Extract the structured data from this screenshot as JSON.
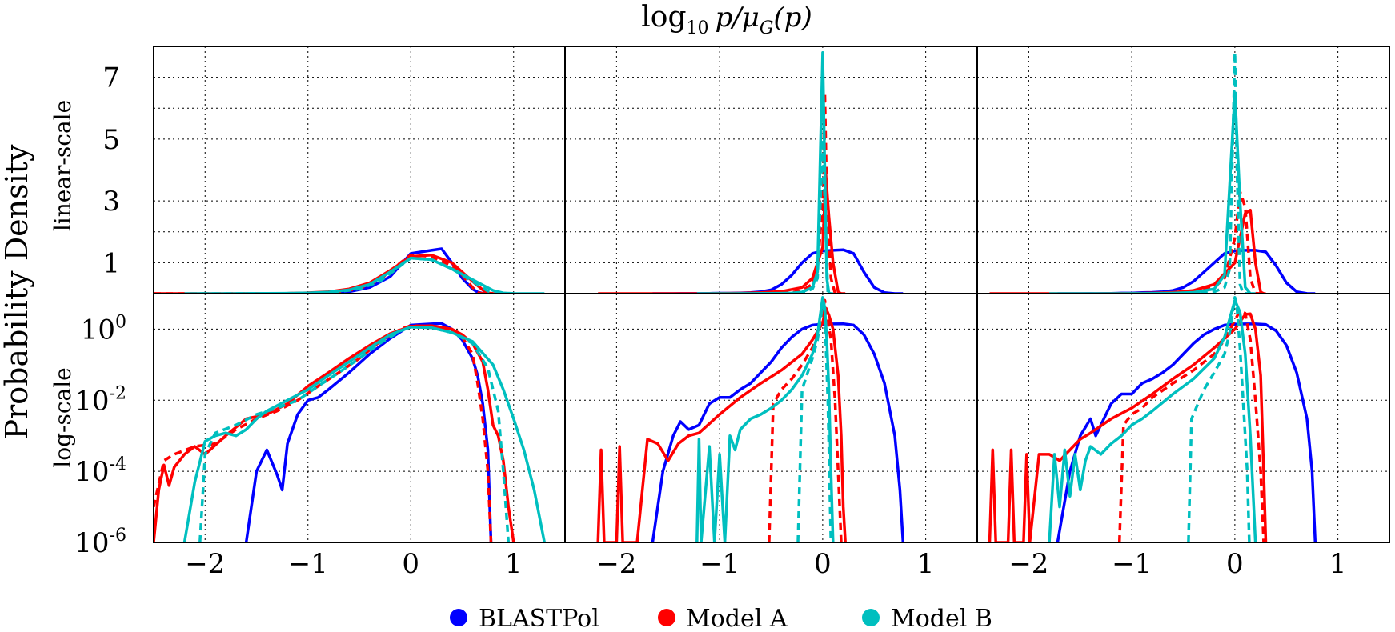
{
  "chart_data": {
    "type": "line",
    "title_main": "log",
    "title_sub": "10",
    "title_tail": "p/μ",
    "title_tail_sub": "G",
    "title_end": "(p)",
    "ylabel": "Probability Density",
    "row_labels": [
      "linear-scale",
      "log-scale"
    ],
    "xlim": [
      -2.5,
      1.5
    ],
    "x_ticks": [
      -2,
      -1,
      0,
      1
    ],
    "x_tick_labels": [
      "−2",
      "−1",
      "0",
      "1"
    ],
    "linear_ylim": [
      0,
      8
    ],
    "linear_ticks": [
      1,
      3,
      5,
      7
    ],
    "linear_tick_labels": [
      "1",
      "3",
      "5",
      "7"
    ],
    "log_ylim_exp": [
      -6,
      1
    ],
    "log_ticks_exp": [
      0,
      -2,
      -4,
      -6
    ],
    "log_tick_bases": [
      "10",
      "10",
      "10",
      "10"
    ],
    "log_tick_exps": [
      "0",
      "-2",
      "-4",
      "-6"
    ],
    "series": [
      {
        "name": "BLASTPol",
        "color": "#0000ff"
      },
      {
        "name": "Model A",
        "color": "#ff0000"
      },
      {
        "name": "Model B",
        "color": "#00bfbf"
      }
    ],
    "panels": [
      {
        "column": 1,
        "curves": [
          {
            "series": "BLASTPol",
            "style": "solid",
            "x": [
              -1.6,
              -1.5,
              -1.4,
              -1.3,
              -1.25,
              -1.2,
              -1.1,
              -1.0,
              -0.9,
              -0.8,
              -0.6,
              -0.4,
              -0.2,
              0.0,
              0.1,
              0.2,
              0.3,
              0.4,
              0.5,
              0.6,
              0.65,
              0.7,
              0.75,
              0.78
            ],
            "y": [
              1e-06,
              0.0001,
              0.0004,
              8e-05,
              3e-05,
              0.0006,
              0.004,
              0.01,
              0.012,
              0.02,
              0.06,
              0.2,
              0.55,
              1.3,
              1.35,
              1.4,
              1.45,
              1.0,
              0.5,
              0.15,
              0.05,
              0.008,
              0.0004,
              1e-06
            ]
          },
          {
            "series": "Model A",
            "style": "solid",
            "x": [
              -2.5,
              -2.45,
              -2.4,
              -2.35,
              -2.3,
              -2.2,
              -2.1,
              -2.0,
              -1.8,
              -1.6,
              -1.4,
              -1.2,
              -1.0,
              -0.8,
              -0.6,
              -0.4,
              -0.2,
              0.0,
              0.2,
              0.4,
              0.5,
              0.6,
              0.7,
              0.75,
              0.8,
              0.85,
              0.9,
              0.95,
              1.0
            ],
            "y": [
              1e-06,
              3e-05,
              0.00015,
              4e-05,
              0.00013,
              0.0003,
              0.0005,
              0.0003,
              0.001,
              0.003,
              0.004,
              0.008,
              0.025,
              0.06,
              0.15,
              0.35,
              0.75,
              1.2,
              1.25,
              1.0,
              0.7,
              0.4,
              0.12,
              0.02,
              0.002,
              0.001,
              0.0002,
              1e-05,
              1e-06
            ]
          },
          {
            "series": "Model A",
            "style": "dashed",
            "x": [
              -2.5,
              -2.4,
              -2.3,
              -2.1,
              -1.9,
              -1.7,
              -1.5,
              -1.3,
              -1.1,
              -0.9,
              -0.7,
              -0.5,
              -0.3,
              -0.1,
              0.0,
              0.2,
              0.4,
              0.5,
              0.6,
              0.65,
              0.7,
              0.75,
              0.78
            ],
            "y": [
              1e-05,
              0.0002,
              0.0003,
              0.0005,
              0.0006,
              0.0015,
              0.003,
              0.005,
              0.01,
              0.025,
              0.06,
              0.15,
              0.45,
              1.0,
              1.25,
              1.2,
              0.9,
              0.6,
              0.2,
              0.03,
              0.003,
              0.0001,
              1e-06
            ]
          },
          {
            "series": "Model B",
            "style": "solid",
            "x": [
              -2.2,
              -2.1,
              -2.0,
              -1.9,
              -1.8,
              -1.7,
              -1.6,
              -1.5,
              -1.4,
              -1.2,
              -1.0,
              -0.8,
              -0.6,
              -0.4,
              -0.2,
              0.0,
              0.2,
              0.4,
              0.6,
              0.8,
              0.9,
              1.0,
              1.1,
              1.2,
              1.3
            ],
            "y": [
              1e-06,
              5e-05,
              0.0007,
              0.001,
              0.0012,
              0.001,
              0.0015,
              0.003,
              0.005,
              0.01,
              0.02,
              0.05,
              0.12,
              0.3,
              0.7,
              1.15,
              1.1,
              0.8,
              0.45,
              0.1,
              0.02,
              0.003,
              0.0004,
              3e-05,
              1e-06
            ]
          },
          {
            "series": "Model B",
            "style": "dashed",
            "x": [
              -2.05,
              -2.0,
              -1.9,
              -1.7,
              -1.5,
              -1.3,
              -1.1,
              -0.9,
              -0.7,
              -0.5,
              -0.3,
              -0.1,
              0.0,
              0.2,
              0.4,
              0.6,
              0.75,
              0.85,
              0.9,
              0.95
            ],
            "y": [
              1e-06,
              0.0003,
              0.0012,
              0.002,
              0.004,
              0.006,
              0.01,
              0.025,
              0.06,
              0.15,
              0.4,
              0.9,
              1.15,
              1.1,
              0.8,
              0.4,
              0.08,
              0.005,
              0.0001,
              1e-06
            ]
          }
        ]
      },
      {
        "column": 2,
        "curves": [
          {
            "series": "BLASTPol",
            "style": "solid",
            "x": [
              -1.65,
              -1.55,
              -1.45,
              -1.38,
              -1.3,
              -1.2,
              -1.1,
              -1.0,
              -0.9,
              -0.8,
              -0.7,
              -0.6,
              -0.5,
              -0.4,
              -0.3,
              -0.2,
              -0.1,
              0.0,
              0.1,
              0.2,
              0.3,
              0.4,
              0.5,
              0.6,
              0.7,
              0.75,
              0.78
            ],
            "y": [
              1e-06,
              0.0001,
              0.001,
              0.0025,
              0.0015,
              0.002,
              0.008,
              0.012,
              0.012,
              0.02,
              0.03,
              0.06,
              0.12,
              0.3,
              0.6,
              1.0,
              1.3,
              1.38,
              1.4,
              1.42,
              1.3,
              0.7,
              0.2,
              0.03,
              0.001,
              3e-05,
              1e-06
            ]
          },
          {
            "series": "Model A",
            "style": "solid",
            "x": [
              -2.18,
              -2.15,
              -2.12,
              -2.0,
              -1.97,
              -1.94,
              -1.8,
              -1.7,
              -1.6,
              -1.5,
              -1.4,
              -1.3,
              -1.2,
              -1.0,
              -0.8,
              -0.6,
              -0.4,
              -0.2,
              -0.1,
              0.0,
              0.03,
              0.06,
              0.1,
              0.15,
              0.18,
              0.2,
              0.22
            ],
            "y": [
              1e-06,
              0.0004,
              1e-06,
              1e-06,
              0.0005,
              1e-06,
              1e-06,
              0.0008,
              0.0006,
              0.0002,
              0.0006,
              0.001,
              0.0012,
              0.004,
              0.012,
              0.03,
              0.07,
              0.2,
              0.5,
              1.5,
              3.9,
              2.5,
              1.0,
              0.05,
              0.001,
              1e-05,
              1e-06
            ]
          },
          {
            "series": "Model A",
            "style": "dashed",
            "x": [
              -0.52,
              -0.48,
              -0.4,
              -0.3,
              -0.2,
              -0.1,
              -0.05,
              0.0,
              0.02,
              0.04,
              0.08,
              0.12,
              0.15,
              0.18
            ],
            "y": [
              1e-06,
              0.008,
              0.02,
              0.04,
              0.1,
              0.3,
              0.8,
              3.0,
              6.5,
              3.0,
              0.5,
              0.01,
              0.0001,
              1e-06
            ]
          },
          {
            "series": "Model B",
            "style": "solid",
            "x": [
              -1.22,
              -1.2,
              -1.18,
              -1.1,
              -1.05,
              -1.0,
              -0.95,
              -0.9,
              -0.85,
              -0.8,
              -0.7,
              -0.6,
              -0.5,
              -0.4,
              -0.3,
              -0.2,
              -0.1,
              -0.05,
              0.0,
              0.02,
              0.04,
              0.06,
              0.08,
              0.1
            ],
            "y": [
              1e-06,
              0.0008,
              1e-06,
              0.0005,
              1e-06,
              0.0003,
              1e-06,
              0.001,
              0.0004,
              0.0015,
              0.003,
              0.004,
              0.006,
              0.01,
              0.02,
              0.05,
              0.2,
              0.7,
              7.8,
              4.0,
              0.5,
              0.02,
              0.0001,
              1e-06
            ]
          },
          {
            "series": "Model B",
            "style": "dashed",
            "x": [
              -0.24,
              -0.2,
              -0.1,
              -0.05,
              0.0,
              0.02,
              0.05,
              0.08
            ],
            "y": [
              1e-06,
              0.02,
              0.15,
              0.5,
              5.0,
              3.0,
              0.01,
              1e-06
            ]
          }
        ]
      },
      {
        "column": 3,
        "curves": [
          {
            "series": "BLASTPol",
            "style": "solid",
            "x": [
              -1.72,
              -1.6,
              -1.5,
              -1.4,
              -1.35,
              -1.3,
              -1.2,
              -1.1,
              -1.0,
              -0.9,
              -0.8,
              -0.7,
              -0.6,
              -0.5,
              -0.4,
              -0.3,
              -0.2,
              -0.1,
              0.0,
              0.1,
              0.2,
              0.3,
              0.4,
              0.5,
              0.6,
              0.7,
              0.75,
              0.78
            ],
            "y": [
              1e-06,
              0.0001,
              0.001,
              0.003,
              0.001,
              0.002,
              0.008,
              0.015,
              0.015,
              0.03,
              0.04,
              0.06,
              0.1,
              0.2,
              0.4,
              0.7,
              1.0,
              1.3,
              1.38,
              1.4,
              1.4,
              1.35,
              0.9,
              0.35,
              0.06,
              0.003,
              0.0001,
              1e-06
            ]
          },
          {
            "series": "Model A",
            "style": "solid",
            "x": [
              -2.38,
              -2.35,
              -2.32,
              -2.2,
              -2.17,
              -2.14,
              -2.05,
              -2.02,
              -1.99,
              -1.9,
              -1.8,
              -1.7,
              -1.6,
              -1.5,
              -1.4,
              -1.2,
              -1.0,
              -0.8,
              -0.6,
              -0.4,
              -0.2,
              0.0,
              0.1,
              0.15,
              0.2,
              0.25,
              0.28,
              0.3
            ],
            "y": [
              1e-06,
              0.0004,
              1e-06,
              1e-06,
              0.0004,
              1e-06,
              1e-06,
              0.0003,
              1e-06,
              0.0003,
              0.0003,
              0.0002,
              0.0004,
              0.0008,
              0.0012,
              0.003,
              0.006,
              0.015,
              0.04,
              0.1,
              0.3,
              1.0,
              2.6,
              2.7,
              1.0,
              0.05,
              0.0001,
              1e-06
            ]
          },
          {
            "series": "Model A",
            "style": "dashed",
            "x": [
              -1.12,
              -1.08,
              -1.0,
              -0.9,
              -0.8,
              -0.6,
              -0.4,
              -0.2,
              -0.1,
              0.0,
              0.05,
              0.1,
              0.15,
              0.2,
              0.25,
              0.28
            ],
            "y": [
              1e-06,
              0.002,
              0.004,
              0.006,
              0.012,
              0.03,
              0.07,
              0.2,
              0.5,
              1.8,
              3.3,
              2.8,
              0.5,
              0.01,
              0.0001,
              1e-06
            ]
          },
          {
            "series": "Model B",
            "style": "solid",
            "x": [
              -1.8,
              -1.75,
              -1.7,
              -1.65,
              -1.6,
              -1.55,
              -1.5,
              -1.45,
              -1.4,
              -1.3,
              -1.2,
              -1.1,
              -1.0,
              -0.9,
              -0.8,
              -0.6,
              -0.4,
              -0.2,
              -0.1,
              0.0,
              0.05,
              0.1,
              0.15,
              0.2
            ],
            "y": [
              1e-06,
              0.0003,
              1e-05,
              0.0004,
              2e-05,
              0.0003,
              3e-05,
              0.0002,
              0.0005,
              0.0003,
              0.0006,
              0.001,
              0.002,
              0.003,
              0.005,
              0.015,
              0.04,
              0.15,
              0.6,
              6.5,
              3.0,
              0.2,
              0.001,
              1e-06
            ]
          },
          {
            "series": "Model B",
            "style": "dashed",
            "x": [
              -0.45,
              -0.42,
              -0.3,
              -0.2,
              -0.1,
              -0.05,
              0.0,
              0.02,
              0.05,
              0.08,
              0.12,
              0.14
            ],
            "y": [
              1e-06,
              0.003,
              0.02,
              0.06,
              0.2,
              0.8,
              7.8,
              4.0,
              0.3,
              0.01,
              0.0001,
              1e-06
            ]
          }
        ]
      }
    ]
  }
}
